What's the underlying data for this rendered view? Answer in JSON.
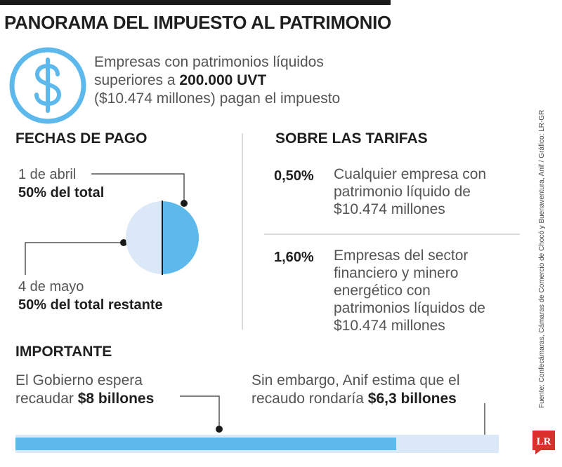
{
  "title": "PANORAMA DEL IMPUESTO AL PATRIMONIO",
  "intro": {
    "line1": "Empresas con patrimonios líquidos",
    "line2_pre": "superiores a ",
    "line2_bold": "200.000 UVT",
    "line3": "($10.474 millones) pagan el impuesto",
    "icon": "dollar-circle-icon"
  },
  "fechas": {
    "heading": "FECHAS DE PAGO",
    "first_date": "1 de abril",
    "first_bold": "50%",
    "first_rest": " del total",
    "second_date": "4 de mayo",
    "second_bold": "50%",
    "second_rest": " del total restante",
    "pie": {
      "first_share": 50,
      "second_share": 50
    }
  },
  "tarifas": {
    "heading": "SOBRE LAS TARIFAS",
    "items": [
      {
        "rate": "0,50%",
        "lines": [
          "Cualquier empresa con",
          "patrimonio líquido de",
          "$10.474 millones"
        ]
      },
      {
        "rate": "1,60%",
        "lines": [
          "Empresas del sector",
          "financiero y minero",
          "energético con",
          "patrimonios líquidos de",
          "$10.474 millones"
        ]
      }
    ]
  },
  "importante": {
    "heading": "IMPORTANTE",
    "left_line1": "El Gobierno espera",
    "left_line2_pre": "recaudar ",
    "left_line2_bold": "$8 billones",
    "right_line1": "Sin embargo, Anif estima que el",
    "right_line2_pre": "recaudo rondaría ",
    "right_line2_bold": "$6,3 billones",
    "bar": {
      "government": 8,
      "anif": 6.3
    }
  },
  "source": "Fuente: Confecámaras, Cámaras de Comercio de Chocó y Buenaventura, Anif / Gráfico: LR-GR",
  "logo": "LR",
  "colors": {
    "accent": "#5db8ec",
    "light": "#dbe8f8",
    "dark": "#1f1f1f"
  }
}
